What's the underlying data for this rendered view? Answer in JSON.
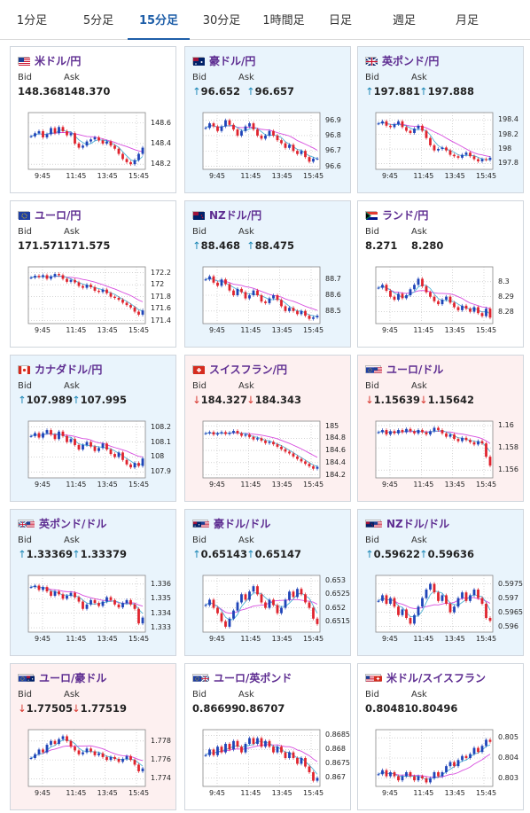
{
  "tabs": [
    "1分足",
    "5分足",
    "15分足",
    "30分足",
    "1時間足",
    "日足",
    "週足",
    "月足"
  ],
  "active_tab": "15分足",
  "labels": {
    "bid": "Bid",
    "ask": "Ask"
  },
  "colors": {
    "tab_active": "#1e5ea8",
    "pair_name": "#5e2d91",
    "up_arrow": "#1c87b6",
    "down_arrow": "#d7352c",
    "bull_candle": "#1f44b8",
    "bear_candle": "#e0242e",
    "ma_short": "#4fb3d6",
    "ma_long": "#d74ddf",
    "card_up_bg": "#e9f4fc",
    "card_down_bg": "#fdf0f0"
  },
  "cards": [
    {
      "pair": "米ドル/円",
      "flag": "us",
      "state": "flat",
      "arrow": "",
      "bid": "148.368",
      "ask": "148.370",
      "chart_data": {
        "type": "candlestick",
        "x_ticks": [
          "9:45",
          "11:45",
          "13:45",
          "15:45"
        ],
        "y_ticks": [
          "148.6",
          "148.4",
          "148.2"
        ],
        "ylim": [
          148.15,
          148.7
        ],
        "close": [
          148.47,
          148.5,
          148.52,
          148.46,
          148.49,
          148.55,
          148.5,
          148.56,
          148.52,
          148.48,
          148.5,
          148.4,
          148.36,
          148.38,
          148.42,
          148.44,
          148.46,
          148.43,
          148.4,
          148.42,
          148.38,
          148.35,
          148.3,
          148.25,
          148.22,
          148.2,
          148.24,
          148.3,
          148.36
        ]
      }
    },
    {
      "pair": "豪ドル/円",
      "flag": "au",
      "state": "up",
      "arrow": "↑",
      "bid": "96.652",
      "ask": "96.657",
      "chart_data": {
        "type": "candlestick",
        "x_ticks": [
          "9:45",
          "11:45",
          "13:45",
          "15:45"
        ],
        "y_ticks": [
          "96.9",
          "96.8",
          "96.7",
          "96.6"
        ],
        "ylim": [
          96.58,
          96.95
        ],
        "close": [
          96.85,
          96.88,
          96.86,
          96.83,
          96.86,
          96.9,
          96.87,
          96.84,
          96.8,
          96.83,
          96.86,
          96.88,
          96.84,
          96.8,
          96.78,
          96.8,
          96.83,
          96.8,
          96.77,
          96.75,
          96.72,
          96.74,
          96.7,
          96.68,
          96.7,
          96.66,
          96.63,
          96.65,
          96.65
        ]
      }
    },
    {
      "pair": "英ポンド/円",
      "flag": "gb",
      "state": "up",
      "arrow": "↑",
      "bid": "197.881",
      "ask": "197.888",
      "chart_data": {
        "type": "candlestick",
        "x_ticks": [
          "9:45",
          "11:45",
          "13:45",
          "15:45"
        ],
        "y_ticks": [
          "198.4",
          "198.2",
          "198",
          "197.8"
        ],
        "ylim": [
          197.72,
          198.5
        ],
        "close": [
          198.35,
          198.38,
          198.32,
          198.3,
          198.34,
          198.38,
          198.3,
          198.25,
          198.22,
          198.28,
          198.32,
          198.25,
          198.15,
          198.05,
          197.98,
          198.0,
          198.02,
          197.98,
          197.92,
          197.9,
          197.88,
          197.92,
          197.95,
          197.9,
          197.86,
          197.83,
          197.86,
          197.85,
          197.88
        ]
      }
    },
    {
      "pair": "ユーロ/円",
      "flag": "eu",
      "state": "flat",
      "arrow": "",
      "bid": "171.571",
      "ask": "171.575",
      "chart_data": {
        "type": "candlestick",
        "x_ticks": [
          "9:45",
          "11:45",
          "13:45",
          "15:45"
        ],
        "y_ticks": [
          "172.2",
          "172",
          "171.8",
          "171.6",
          "171.4"
        ],
        "ylim": [
          171.35,
          172.3
        ],
        "close": [
          172.12,
          172.15,
          172.13,
          172.16,
          172.1,
          172.14,
          172.18,
          172.16,
          172.1,
          172.05,
          172.08,
          172.04,
          171.98,
          171.95,
          172.0,
          171.96,
          171.9,
          171.88,
          171.92,
          171.86,
          171.8,
          171.78,
          171.75,
          171.7,
          171.66,
          171.62,
          171.55,
          171.5,
          171.57
        ]
      }
    },
    {
      "pair": "NZドル/円",
      "flag": "nz",
      "state": "up",
      "arrow": "↑",
      "bid": "88.468",
      "ask": "88.475",
      "chart_data": {
        "type": "candlestick",
        "x_ticks": [
          "9:45",
          "11:45",
          "13:45",
          "15:45"
        ],
        "y_ticks": [
          "88.7",
          "88.6",
          "88.5"
        ],
        "ylim": [
          88.42,
          88.78
        ],
        "close": [
          88.7,
          88.72,
          88.68,
          88.66,
          88.7,
          88.67,
          88.63,
          88.6,
          88.64,
          88.62,
          88.58,
          88.6,
          88.63,
          88.6,
          88.56,
          88.55,
          88.58,
          88.6,
          88.57,
          88.53,
          88.5,
          88.52,
          88.5,
          88.48,
          88.5,
          88.47,
          88.45,
          88.46,
          88.47
        ]
      }
    },
    {
      "pair": "ランド/円",
      "flag": "za",
      "state": "flat",
      "arrow": "",
      "bid": "8.271",
      "ask": "8.280",
      "chart_data": {
        "type": "candlestick",
        "x_ticks": [
          "9:45",
          "11:45",
          "13:45",
          "15:45"
        ],
        "y_ticks": [
          "8.3",
          "8.29",
          "8.28"
        ],
        "ylim": [
          8.272,
          8.31
        ],
        "close": [
          8.296,
          8.298,
          8.294,
          8.29,
          8.288,
          8.292,
          8.289,
          8.291,
          8.295,
          8.298,
          8.302,
          8.297,
          8.293,
          8.29,
          8.287,
          8.285,
          8.288,
          8.29,
          8.286,
          8.283,
          8.281,
          8.284,
          8.282,
          8.28,
          8.283,
          8.279,
          8.277,
          8.282,
          8.276
        ]
      }
    },
    {
      "pair": "カナダドル/円",
      "flag": "ca",
      "state": "up",
      "arrow": "↑",
      "bid": "107.989",
      "ask": "107.995",
      "chart_data": {
        "type": "candlestick",
        "x_ticks": [
          "9:45",
          "11:45",
          "13:45",
          "15:45"
        ],
        "y_ticks": [
          "108.2",
          "108.1",
          "108",
          "107.9"
        ],
        "ylim": [
          107.86,
          108.24
        ],
        "close": [
          108.14,
          108.16,
          108.13,
          108.16,
          108.18,
          108.15,
          108.12,
          108.17,
          108.14,
          108.1,
          108.12,
          108.08,
          108.05,
          108.08,
          108.1,
          108.07,
          108.04,
          108.06,
          108.09,
          108.05,
          108.02,
          108.0,
          108.03,
          107.98,
          107.95,
          107.93,
          107.96,
          107.94,
          107.99
        ]
      }
    },
    {
      "pair": "スイスフラン/円",
      "flag": "ch",
      "state": "down",
      "arrow": "↓",
      "bid": "184.327",
      "ask": "184.343",
      "chart_data": {
        "type": "candlestick",
        "x_ticks": [
          "9:45",
          "11:45",
          "13:45",
          "15:45"
        ],
        "y_ticks": [
          "185",
          "184.8",
          "184.6",
          "184.4",
          "184.2"
        ],
        "ylim": [
          184.15,
          185.08
        ],
        "close": [
          184.88,
          184.9,
          184.86,
          184.88,
          184.9,
          184.87,
          184.89,
          184.92,
          184.88,
          184.84,
          184.86,
          184.82,
          184.78,
          184.8,
          184.76,
          184.72,
          184.74,
          184.7,
          184.66,
          184.62,
          184.58,
          184.55,
          184.5,
          184.46,
          184.42,
          184.38,
          184.34,
          184.3,
          184.33
        ]
      }
    },
    {
      "pair": "ユーロ/ドル",
      "flag": "eu-us",
      "state": "down",
      "arrow": "↓",
      "bid": "1.15639",
      "ask": "1.15642",
      "chart_data": {
        "type": "candlestick",
        "x_ticks": [
          "9:45",
          "11:45",
          "13:45",
          "15:45"
        ],
        "y_ticks": [
          "1.16",
          "1.158",
          "1.156"
        ],
        "ylim": [
          1.1553,
          1.1604
        ],
        "close": [
          1.1594,
          1.1596,
          1.1592,
          1.1595,
          1.1593,
          1.1596,
          1.1594,
          1.1597,
          1.1595,
          1.1593,
          1.1596,
          1.1594,
          1.1592,
          1.1595,
          1.1598,
          1.1596,
          1.1593,
          1.159,
          1.1592,
          1.1588,
          1.1586,
          1.1589,
          1.1587,
          1.1585,
          1.1583,
          1.1586,
          1.1584,
          1.1572,
          1.1564
        ]
      }
    },
    {
      "pair": "英ポンド/ドル",
      "flag": "gb-us",
      "state": "up",
      "arrow": "↑",
      "bid": "1.33369",
      "ask": "1.33379",
      "chart_data": {
        "type": "candlestick",
        "x_ticks": [
          "9:45",
          "11:45",
          "13:45",
          "15:45"
        ],
        "y_ticks": [
          "1.336",
          "1.335",
          "1.334",
          "1.333"
        ],
        "ylim": [
          1.3327,
          1.3366
        ],
        "close": [
          1.3358,
          1.3359,
          1.3356,
          1.3358,
          1.3355,
          1.3352,
          1.3355,
          1.3353,
          1.335,
          1.3352,
          1.3354,
          1.3351,
          1.3348,
          1.3343,
          1.3346,
          1.3349,
          1.3347,
          1.3345,
          1.3348,
          1.3351,
          1.3349,
          1.3346,
          1.3344,
          1.3347,
          1.3349,
          1.3346,
          1.3343,
          1.3333,
          1.3337
        ]
      }
    },
    {
      "pair": "豪ドル/ドル",
      "flag": "au-us",
      "state": "up",
      "arrow": "↑",
      "bid": "0.65143",
      "ask": "0.65147",
      "chart_data": {
        "type": "candlestick",
        "x_ticks": [
          "9:45",
          "11:45",
          "13:45",
          "15:45"
        ],
        "y_ticks": [
          "0.653",
          "0.6525",
          "0.652",
          "0.6515"
        ],
        "ylim": [
          0.6511,
          0.6532
        ],
        "close": [
          0.6521,
          0.6523,
          0.652,
          0.6518,
          0.6515,
          0.6513,
          0.6516,
          0.6519,
          0.6522,
          0.6525,
          0.6523,
          0.6526,
          0.6528,
          0.6525,
          0.6522,
          0.652,
          0.6523,
          0.6521,
          0.6518,
          0.652,
          0.6523,
          0.6526,
          0.6524,
          0.6527,
          0.6525,
          0.6522,
          0.652,
          0.6516,
          0.6514
        ]
      }
    },
    {
      "pair": "NZドル/ドル",
      "flag": "nz-us",
      "state": "up",
      "arrow": "↑",
      "bid": "0.59622",
      "ask": "0.59636",
      "chart_data": {
        "type": "candlestick",
        "x_ticks": [
          "9:45",
          "11:45",
          "13:45",
          "15:45"
        ],
        "y_ticks": [
          "0.5975",
          "0.597",
          "0.5965",
          "0.596"
        ],
        "ylim": [
          0.5958,
          0.5978
        ],
        "close": [
          0.5969,
          0.5971,
          0.5968,
          0.597,
          0.5967,
          0.5964,
          0.5966,
          0.5963,
          0.5961,
          0.5964,
          0.5967,
          0.597,
          0.5973,
          0.5975,
          0.5972,
          0.5969,
          0.5971,
          0.5968,
          0.5965,
          0.5967,
          0.597,
          0.5972,
          0.5969,
          0.5971,
          0.5973,
          0.597,
          0.5968,
          0.5963,
          0.5962
        ]
      }
    },
    {
      "pair": "ユーロ/豪ドル",
      "flag": "eu-au",
      "state": "down",
      "arrow": "↓",
      "bid": "1.77505",
      "ask": "1.77519",
      "chart_data": {
        "type": "candlestick",
        "x_ticks": [
          "9:45",
          "11:45",
          "13:45",
          "15:45"
        ],
        "y_ticks": [
          "1.778",
          "1.776",
          "1.774"
        ],
        "ylim": [
          1.7732,
          1.7792
        ],
        "close": [
          1.7762,
          1.7766,
          1.7771,
          1.7768,
          1.7776,
          1.778,
          1.7777,
          1.7782,
          1.7785,
          1.778,
          1.7774,
          1.777,
          1.7766,
          1.7768,
          1.7772,
          1.7769,
          1.7765,
          1.7767,
          1.7763,
          1.776,
          1.7763,
          1.7761,
          1.7758,
          1.7761,
          1.7764,
          1.776,
          1.7755,
          1.7748,
          1.7751
        ]
      }
    },
    {
      "pair": "ユーロ/英ポンド",
      "flag": "eu-gb",
      "state": "flat",
      "arrow": "",
      "bid": "0.86699",
      "ask": "0.86707",
      "chart_data": {
        "type": "candlestick",
        "x_ticks": [
          "9:45",
          "11:45",
          "13:45",
          "15:45"
        ],
        "y_ticks": [
          "0.8685",
          "0.868",
          "0.8675",
          "0.867"
        ],
        "ylim": [
          0.8667,
          0.8687
        ],
        "close": [
          0.8678,
          0.868,
          0.8678,
          0.8681,
          0.8679,
          0.8682,
          0.868,
          0.8683,
          0.8681,
          0.8679,
          0.8682,
          0.8684,
          0.8682,
          0.8684,
          0.8681,
          0.8683,
          0.8681,
          0.8679,
          0.8681,
          0.8679,
          0.8677,
          0.8679,
          0.8677,
          0.8675,
          0.8677,
          0.8674,
          0.8672,
          0.8669,
          0.867
        ]
      }
    },
    {
      "pair": "米ドル/スイスフラン",
      "flag": "us-ch",
      "state": "flat",
      "arrow": "",
      "bid": "0.80481",
      "ask": "0.80496",
      "chart_data": {
        "type": "candlestick",
        "x_ticks": [
          "9:45",
          "11:45",
          "13:45",
          "15:45"
        ],
        "y_ticks": [
          "0.805",
          "0.804",
          "0.803"
        ],
        "ylim": [
          0.8026,
          0.8054
        ],
        "close": [
          0.8032,
          0.8034,
          0.8031,
          0.8033,
          0.8031,
          0.8029,
          0.8031,
          0.8033,
          0.8031,
          0.8029,
          0.8031,
          0.803,
          0.8028,
          0.803,
          0.8033,
          0.8031,
          0.8033,
          0.8036,
          0.8038,
          0.8036,
          0.8039,
          0.8041,
          0.804,
          0.8042,
          0.8045,
          0.8043,
          0.8046,
          0.8049,
          0.8048
        ]
      }
    }
  ]
}
